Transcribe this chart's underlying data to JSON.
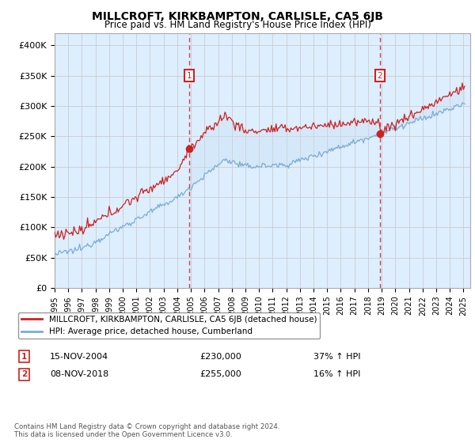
{
  "title": "MILLCROFT, KIRKBAMPTON, CARLISLE, CA5 6JB",
  "subtitle": "Price paid vs. HM Land Registry's House Price Index (HPI)",
  "legend_label_red": "MILLCROFT, KIRKBAMPTON, CARLISLE, CA5 6JB (detached house)",
  "legend_label_blue": "HPI: Average price, detached house, Cumberland",
  "annotation1_date": "15-NOV-2004",
  "annotation1_price": "£230,000",
  "annotation1_hpi": "37% ↑ HPI",
  "annotation2_date": "08-NOV-2018",
  "annotation2_price": "£255,000",
  "annotation2_hpi": "16% ↑ HPI",
  "footer": "Contains HM Land Registry data © Crown copyright and database right 2024.\nThis data is licensed under the Open Government Licence v3.0.",
  "ylim": [
    0,
    420000
  ],
  "yticks": [
    0,
    50000,
    100000,
    150000,
    200000,
    250000,
    300000,
    350000,
    400000
  ],
  "ytick_labels": [
    "£0",
    "£50K",
    "£100K",
    "£150K",
    "£200K",
    "£250K",
    "£300K",
    "£350K",
    "£400K"
  ],
  "red_color": "#cc2222",
  "blue_color": "#7aadd4",
  "vline_color": "#cc2222",
  "grid_color": "#cccccc",
  "bg_color": "#ddeeff",
  "fill_color": "#c8dff0",
  "annotation_box_color": "#cc2222",
  "sale1_x": 2004.88,
  "sale1_y": 230000,
  "sale2_x": 2018.86,
  "sale2_y": 255000,
  "xmin": 1995,
  "xmax": 2025.5
}
